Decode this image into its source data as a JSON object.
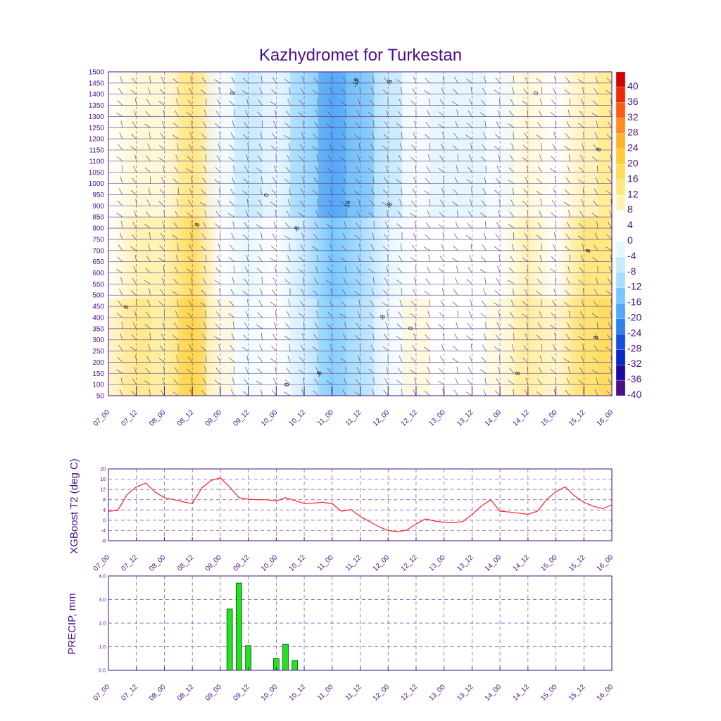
{
  "title": "Kazhydromet for Turkestan",
  "colors": {
    "frame": "#4b0f8a",
    "grid": "#7a3fc0",
    "t2_line": "#ff2020",
    "precip_bar": "#1ee61e"
  },
  "chart_data": [
    {
      "type": "heatmap",
      "title": "Kazhydromet for Turkestan",
      "x_tick_labels": [
        "07_00",
        "07_12",
        "08_00",
        "08_12",
        "09_00",
        "09_12",
        "10_00",
        "10_12",
        "11_00",
        "11_12",
        "12_00",
        "12_12",
        "13_00",
        "13_12",
        "14_00",
        "14_12",
        "15_00",
        "15_12",
        "16_00"
      ],
      "y_tick_labels": [
        "50",
        "100",
        "150",
        "200",
        "250",
        "300",
        "350",
        "400",
        "450",
        "500",
        "550",
        "600",
        "650",
        "700",
        "750",
        "800",
        "850",
        "900",
        "950",
        "1000",
        "1050",
        "1100",
        "1150",
        "1200",
        "1250",
        "1300",
        "1350",
        "1400",
        "1450",
        "1500"
      ],
      "ylim": [
        50,
        1500
      ],
      "grid": true,
      "colorbar_labels": [
        "40",
        "36",
        "32",
        "28",
        "24",
        "20",
        "16",
        "12",
        "8",
        "4",
        "0",
        "-4",
        "-8",
        "-12",
        "-16",
        "-20",
        "-24",
        "-28",
        "-32",
        "-36",
        "-40"
      ],
      "colorbar_colors": [
        "#d70000",
        "#f0280a",
        "#ff5a14",
        "#ff8c1e",
        "#ffb428",
        "#ffcd32",
        "#ffdc5a",
        "#ffe882",
        "#fff3b4",
        "#ffffff",
        "#ffffff",
        "#e6f8ff",
        "#c8ecff",
        "#a5dcff",
        "#78c8ff",
        "#50aaf5",
        "#2d82eb",
        "#1450dc",
        "#0a28c8",
        "#1e0aa0",
        "#4b0f8a"
      ],
      "contour_labels": [
        "-16",
        "-16",
        "-8",
        "-8",
        "-8",
        "-8",
        "-8",
        "0",
        "0",
        "0",
        "0",
        "0",
        "8",
        "8",
        "8",
        "8",
        "8",
        "8"
      ],
      "temperature_by_time": [
        6,
        10,
        8,
        16,
        2,
        -4,
        0,
        -8,
        -16,
        -12,
        -4,
        2,
        0,
        0,
        4,
        8,
        6,
        12,
        14
      ]
    },
    {
      "type": "line",
      "ylabel": "XGBoost T2 (deg C)",
      "x_tick_labels": [
        "07_00",
        "07_12",
        "08_00",
        "08_12",
        "09_00",
        "09_12",
        "10_00",
        "10_12",
        "11_00",
        "11_12",
        "12_00",
        "12_12",
        "13_00",
        "13_12",
        "14_00",
        "14_12",
        "15_00",
        "15_12",
        "16_00"
      ],
      "y_tick_labels": [
        "20",
        "16",
        "12",
        "8",
        "4",
        "0",
        "-4",
        "-8"
      ],
      "ylim": [
        -8,
        20
      ],
      "grid": true,
      "x": [
        0,
        1,
        2,
        3,
        4,
        5,
        6,
        7,
        8,
        9,
        10,
        11,
        12,
        13,
        14,
        15,
        16,
        17,
        18,
        19,
        20,
        21,
        22,
        23,
        24,
        25,
        26,
        27,
        28,
        29,
        30,
        31,
        32,
        33,
        34,
        35,
        36,
        37,
        38,
        39,
        40,
        41,
        42,
        43,
        44,
        45,
        46,
        47,
        48,
        49,
        50,
        51,
        52,
        53,
        54
      ],
      "series": [
        {
          "values": [
            3.5,
            3.8,
            10,
            13,
            14.5,
            11,
            8.8,
            8,
            7.2,
            6.5,
            12.5,
            15.5,
            16.5,
            13,
            8.8,
            8.2,
            8.0,
            8.0,
            7.5,
            8.8,
            7.7,
            6.5,
            6.7,
            7.0,
            6.4,
            3.5,
            4.2,
            1.5,
            -0.5,
            -2.5,
            -4,
            -4.5,
            -3.8,
            -1.5,
            0.5,
            -0.3,
            -0.8,
            -1,
            -0.5,
            2.2,
            5.5,
            8,
            3.5,
            3.2,
            2.8,
            2.3,
            3.5,
            8,
            11.2,
            13,
            9.5,
            7,
            5.5,
            4.5,
            6
          ]
        }
      ]
    },
    {
      "type": "bar",
      "ylabel": "PRECIP, mm",
      "x_tick_labels": [
        "07_00",
        "07_12",
        "08_00",
        "08_12",
        "09_00",
        "09_12",
        "10_00",
        "10_12",
        "11_00",
        "11_12",
        "12_00",
        "12_12",
        "13_00",
        "13_12",
        "14_00",
        "14_12",
        "15_00",
        "15_12",
        "16_00"
      ],
      "y_tick_labels": [
        "4.0",
        "3.0",
        "2.0",
        "1.0",
        "0.0"
      ],
      "ylim": [
        0,
        4
      ],
      "grid": true,
      "x": [
        13,
        14,
        15,
        18,
        19,
        20
      ],
      "values": [
        2.6,
        3.7,
        1.05,
        0.5,
        1.1,
        0.42
      ]
    }
  ]
}
